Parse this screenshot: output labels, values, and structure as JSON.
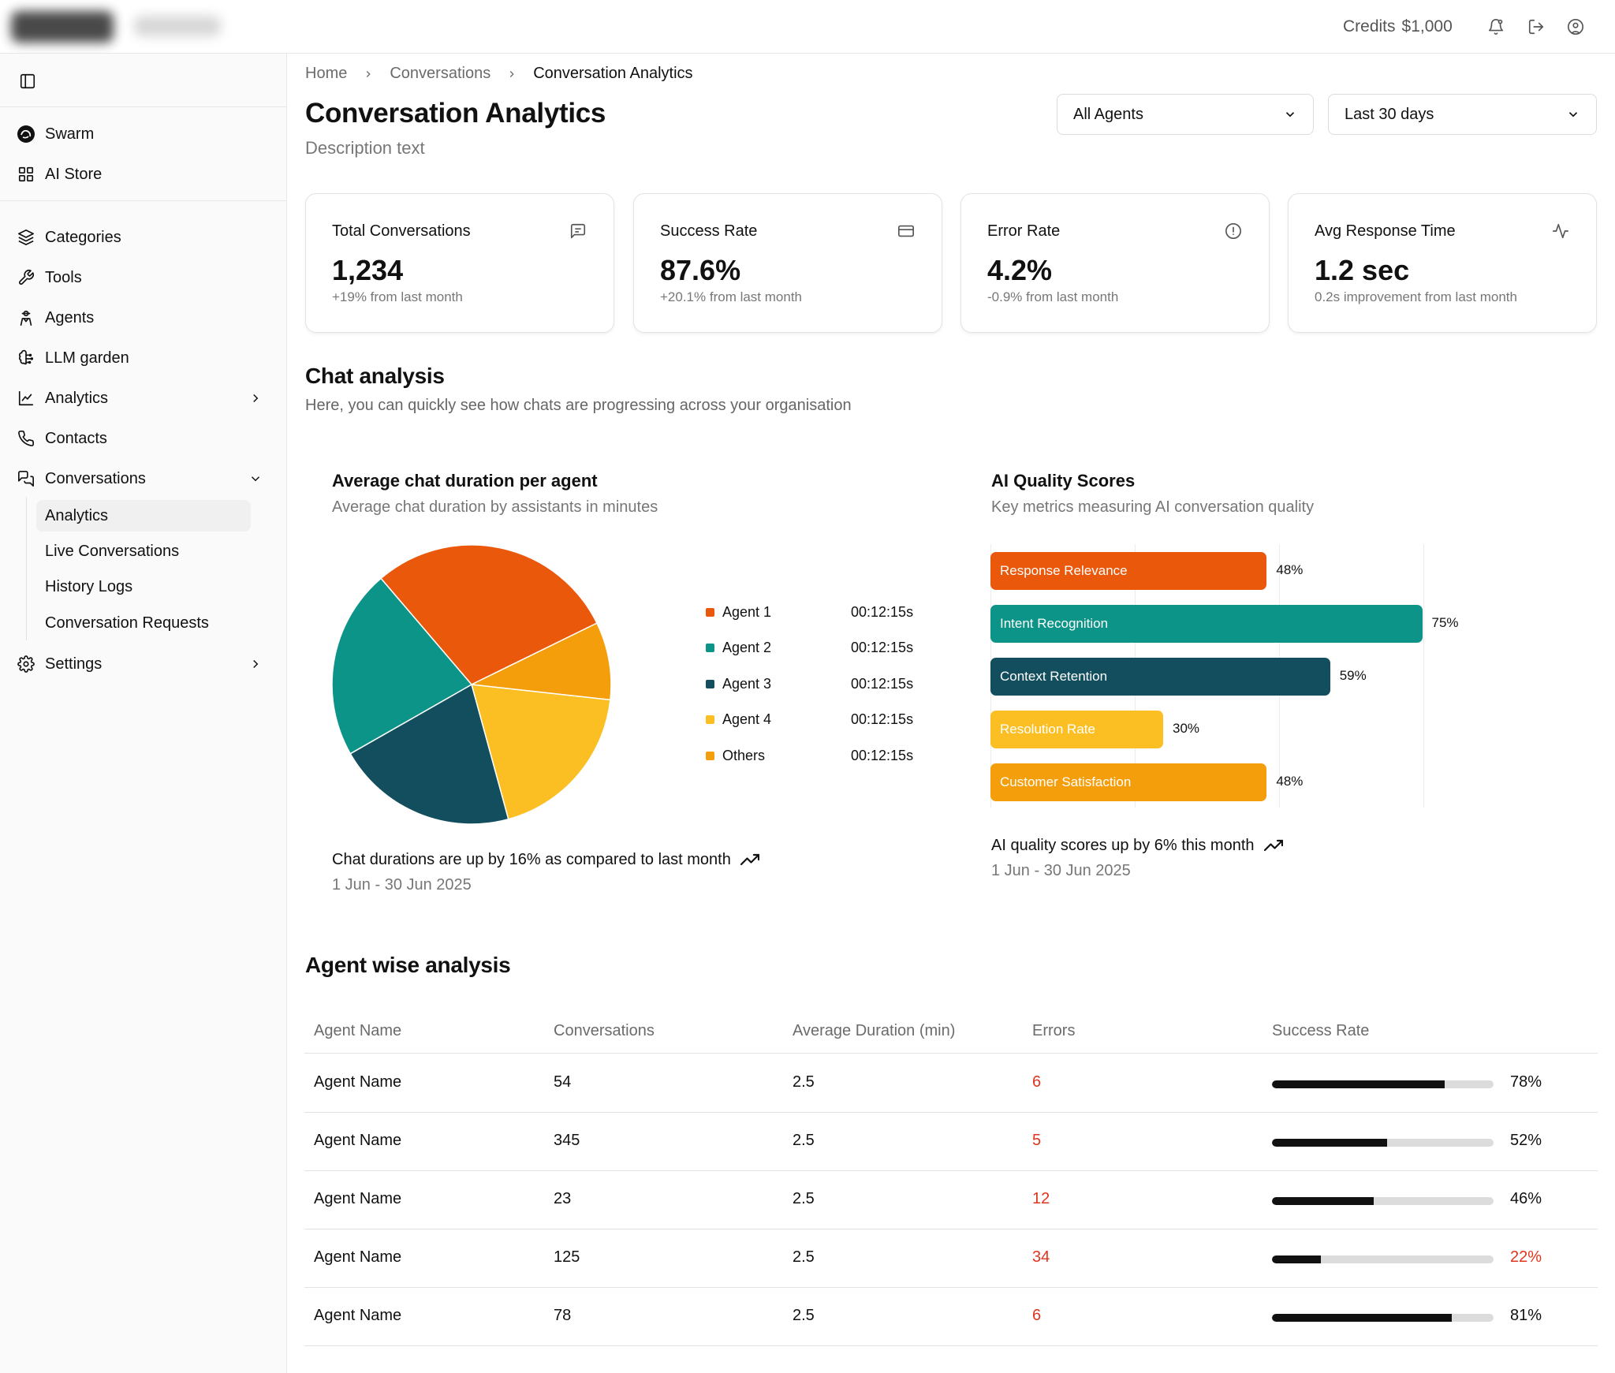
{
  "topbar": {
    "credits_label": "Credits",
    "credits_value": "$1,000"
  },
  "sidebar": {
    "primary": [
      {
        "label": "Swarm"
      },
      {
        "label": "AI Store"
      }
    ],
    "items": [
      {
        "label": "Categories"
      },
      {
        "label": "Tools"
      },
      {
        "label": "Agents"
      },
      {
        "label": "LLM garden"
      },
      {
        "label": "Analytics"
      },
      {
        "label": "Contacts"
      },
      {
        "label": "Conversations"
      }
    ],
    "conversations_sub": [
      {
        "label": "Analytics"
      },
      {
        "label": "Live Conversations"
      },
      {
        "label": "History Logs"
      },
      {
        "label": "Conversation Requests"
      }
    ],
    "settings": {
      "label": "Settings"
    }
  },
  "breadcrumb": [
    "Home",
    "Conversations",
    "Conversation Analytics"
  ],
  "header": {
    "title": "Conversation Analytics",
    "description": "Description text"
  },
  "filters": {
    "agent": "All Agents",
    "period": "Last 30 days"
  },
  "stats": [
    {
      "title": "Total Conversations",
      "value": "1,234",
      "sub": "+19% from last month",
      "icon": "message-square-icon"
    },
    {
      "title": "Success Rate",
      "value": "87.6%",
      "sub": "+20.1% from last month",
      "icon": "credit-card-icon"
    },
    {
      "title": "Error Rate",
      "value": "4.2%",
      "sub": "-0.9% from last month",
      "icon": "alert-circle-icon"
    },
    {
      "title": "Avg Response Time",
      "value": "1.2 sec",
      "sub": "0.2s improvement from last month",
      "icon": "activity-icon"
    }
  ],
  "chat_analysis": {
    "title": "Chat analysis",
    "subtitle": "Here, you can quickly see how chats are progressing across your organisation"
  },
  "pie_chart": {
    "title": "Average chat duration per agent",
    "subtitle": "Average chat duration by assistants in minutes",
    "trend": "Chat durations are up by 16% as compared to last month",
    "date_range": "1 Jun - 30 Jun 2025"
  },
  "bar_chart": {
    "title": "AI Quality Scores",
    "subtitle": "Key metrics measuring AI conversation quality",
    "trend": "AI quality scores up by 6% this month",
    "date_range": "1 Jun - 30 Jun 2025"
  },
  "chart_data": [
    {
      "type": "pie",
      "title": "Average chat duration per agent",
      "subtitle": "Average chat duration by assistants in minutes",
      "slices": [
        {
          "label": "Agent 1",
          "value": 29,
          "display": "00:12:15s",
          "color": "#ea580c"
        },
        {
          "label": "Others",
          "value": 9,
          "display": "00:12:15s",
          "color": "#f59e0b"
        },
        {
          "label": "Agent 4",
          "value": 19,
          "display": "00:12:15s",
          "color": "#fbbf24"
        },
        {
          "label": "Agent 3",
          "value": 21,
          "display": "00:12:15s",
          "color": "#134e5e"
        },
        {
          "label": "Agent 2",
          "value": 22,
          "display": "00:12:15s",
          "color": "#0d9488"
        }
      ],
      "legend_order": [
        "Agent 1",
        "Agent 2",
        "Agent 3",
        "Agent 4",
        "Others"
      ],
      "legend_placement": "right"
    },
    {
      "type": "bar",
      "orientation": "horizontal",
      "title": "AI Quality Scores",
      "subtitle": "Key metrics measuring AI conversation quality",
      "categories": [
        "Response Relevance",
        "Intent Recognition",
        "Context Retention",
        "Resolution Rate",
        "Customer Satisfaction"
      ],
      "values": [
        48,
        75,
        59,
        30,
        48
      ],
      "colors": [
        "#ea580c",
        "#0d9488",
        "#134e5e",
        "#fbbf24",
        "#f59e0b"
      ],
      "xlim": [
        0,
        100
      ],
      "grid": true
    }
  ],
  "agent_table": {
    "title": "Agent wise analysis",
    "columns": [
      "Agent Name",
      "Conversations",
      "Average Duration (min)",
      "Errors",
      "Success Rate"
    ],
    "rows": [
      {
        "name": "Agent Name",
        "conversations": "54",
        "duration": "2.5",
        "errors": "6",
        "success": 78,
        "success_label": "78%",
        "low": false
      },
      {
        "name": "Agent Name",
        "conversations": "345",
        "duration": "2.5",
        "errors": "5",
        "success": 52,
        "success_label": "52%",
        "low": false
      },
      {
        "name": "Agent Name",
        "conversations": "23",
        "duration": "2.5",
        "errors": "12",
        "success": 46,
        "success_label": "46%",
        "low": false
      },
      {
        "name": "Agent Name",
        "conversations": "125",
        "duration": "2.5",
        "errors": "34",
        "success": 22,
        "success_label": "22%",
        "low": true
      },
      {
        "name": "Agent Name",
        "conversations": "78",
        "duration": "2.5",
        "errors": "6",
        "success": 81,
        "success_label": "81%",
        "low": false
      }
    ]
  }
}
